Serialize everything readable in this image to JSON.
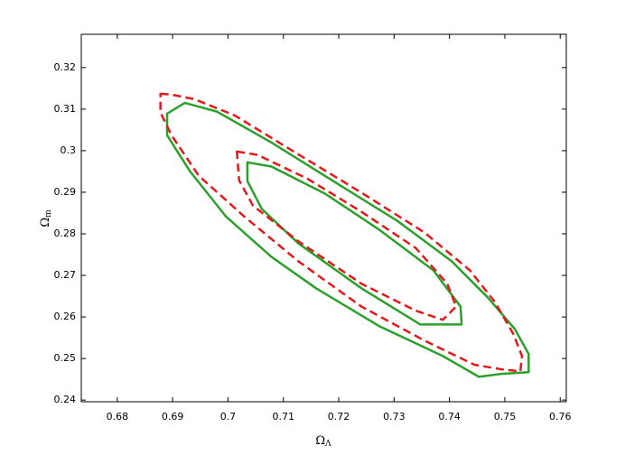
{
  "chart_data": {
    "type": "line",
    "xlabel": {
      "symbol": "Ω",
      "subscript": "Λ"
    },
    "ylabel": {
      "symbol": "Ω",
      "subscript": "m"
    },
    "xlim": [
      0.6735,
      0.7611
    ],
    "ylim": [
      0.2396,
      0.328
    ],
    "xticks": [
      0.68,
      0.69,
      0.7,
      0.71,
      0.72,
      0.73,
      0.74,
      0.75,
      0.76
    ],
    "yticks": [
      0.24,
      0.25,
      0.26,
      0.27,
      0.28,
      0.29,
      0.3,
      0.31,
      0.32
    ],
    "closed": true,
    "series": [
      {
        "color": "#2ca02c",
        "dashed": false,
        "x": [
          0.689,
          0.6922,
          0.698,
          0.7078,
          0.7208,
          0.7306,
          0.7404,
          0.7469,
          0.7518,
          0.7543,
          0.7543,
          0.7494,
          0.7453,
          0.7388,
          0.7273,
          0.7159,
          0.7078,
          0.6996,
          0.6931,
          0.689
        ],
        "values": [
          0.3089,
          0.3115,
          0.3094,
          0.302,
          0.2912,
          0.2831,
          0.2734,
          0.2647,
          0.2571,
          0.2511,
          0.2467,
          0.2463,
          0.2456,
          0.2506,
          0.2578,
          0.2669,
          0.2745,
          0.2842,
          0.2951,
          0.3037
        ]
      },
      {
        "color": "#2ca02c",
        "dashed": false,
        "x": [
          0.7035,
          0.7078,
          0.7176,
          0.7273,
          0.7371,
          0.742,
          0.7422,
          0.7347,
          0.7241,
          0.7127,
          0.7061,
          0.7035
        ],
        "values": [
          0.2972,
          0.2962,
          0.2896,
          0.281,
          0.2712,
          0.2625,
          0.2582,
          0.2582,
          0.2669,
          0.2777,
          0.286,
          0.2927
        ]
      },
      {
        "color": "#e31a1c",
        "dashed": true,
        "x": [
          0.6878,
          0.6898,
          0.6939,
          0.7012,
          0.711,
          0.7241,
          0.7355,
          0.7437,
          0.7482,
          0.7515,
          0.7531,
          0.7528,
          0.7494,
          0.7445,
          0.7355,
          0.7241,
          0.7127,
          0.7029,
          0.6947,
          0.6898,
          0.6878
        ],
        "values": [
          0.3137,
          0.3135,
          0.3124,
          0.3085,
          0.3005,
          0.2899,
          0.2803,
          0.2712,
          0.2636,
          0.256,
          0.2506,
          0.2469,
          0.2474,
          0.2485,
          0.2543,
          0.2625,
          0.2734,
          0.2842,
          0.294,
          0.3037,
          0.3092
        ]
      },
      {
        "color": "#e31a1c",
        "dashed": true,
        "x": [
          0.7016,
          0.7053,
          0.7143,
          0.7241,
          0.7339,
          0.7396,
          0.7412,
          0.7388,
          0.7339,
          0.7241,
          0.7127,
          0.7045,
          0.702
        ],
        "values": [
          0.2998,
          0.299,
          0.2933,
          0.2853,
          0.2766,
          0.268,
          0.2625,
          0.2593,
          0.2615,
          0.268,
          0.2782,
          0.2868,
          0.2929
        ]
      }
    ]
  }
}
